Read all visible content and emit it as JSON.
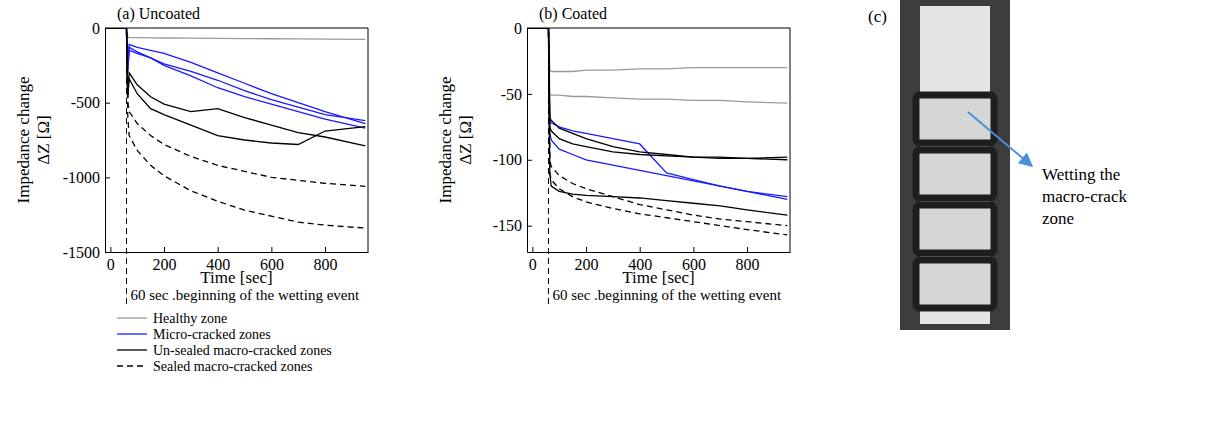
{
  "chart_data": [
    {
      "type": "line",
      "title": "(a) Uncoated",
      "x_label": "Time [sec]",
      "y_label": [
        "Impedance change",
        "ΔZ [Ω]"
      ],
      "annotation": "60 sec .beginning of the wetting event",
      "wetting_start": 60,
      "legend": "bottom",
      "x": [
        0,
        50,
        60,
        65,
        70,
        100,
        150,
        200,
        300,
        400,
        500,
        600,
        700,
        800,
        950
      ],
      "xlim": [
        -20,
        960
      ],
      "xticks": [
        0,
        200,
        400,
        600,
        800
      ],
      "ylim": [
        -1500,
        0
      ],
      "yticks": [
        -1500,
        -1000,
        -500,
        0
      ],
      "series": [
        {
          "name": "Healthy zone",
          "color": "#999999",
          "line_style": "solid",
          "values": [
            0,
            0,
            0,
            -60,
            -65,
            -65,
            -66,
            -67,
            -68,
            -70,
            -71,
            -72,
            -73,
            -74,
            -76
          ]
        },
        {
          "name": "Micro-cracked zones",
          "color": "#1a1aff",
          "line_style": "solid",
          "values": [
            0,
            0,
            0,
            -260,
            -110,
            -130,
            -150,
            -170,
            -230,
            -300,
            -370,
            -440,
            -500,
            -560,
            -640
          ]
        },
        {
          "name": "Micro-cracked zones",
          "color": "#1a1aff",
          "line_style": "solid",
          "values": [
            0,
            0,
            0,
            -300,
            -150,
            -170,
            -200,
            -240,
            -290,
            -350,
            -420,
            -480,
            -530,
            -580,
            -620
          ]
        },
        {
          "name": "Micro-cracked zones",
          "color": "#1a1aff",
          "line_style": "solid",
          "values": [
            0,
            0,
            0,
            -280,
            -130,
            -160,
            -200,
            -250,
            -320,
            -400,
            -460,
            -510,
            -560,
            -610,
            -670
          ]
        },
        {
          "name": "Un-sealed macro-cracked zones",
          "color": "#000000",
          "line_style": "solid",
          "values": [
            0,
            0,
            0,
            -470,
            -300,
            -380,
            -460,
            -510,
            -560,
            -540,
            -600,
            -650,
            -700,
            -730,
            -790
          ]
        },
        {
          "name": "Un-sealed macro-cracked zones",
          "color": "#000000",
          "line_style": "solid",
          "values": [
            0,
            0,
            0,
            -450,
            -340,
            -440,
            -540,
            -580,
            -650,
            -720,
            -750,
            -770,
            -780,
            -690,
            -660
          ]
        },
        {
          "name": "Sealed macro-cracked zones",
          "color": "#000000",
          "line_style": "dashed",
          "values": [
            0,
            0,
            0,
            -500,
            -560,
            -640,
            -720,
            -780,
            -860,
            -920,
            -960,
            -1000,
            -1020,
            -1040,
            -1060
          ]
        },
        {
          "name": "Sealed macro-cracked zones",
          "color": "#000000",
          "line_style": "dashed",
          "values": [
            0,
            0,
            0,
            -600,
            -720,
            -820,
            -920,
            -990,
            -1090,
            -1160,
            -1220,
            -1260,
            -1300,
            -1320,
            -1340
          ]
        }
      ]
    },
    {
      "type": "line",
      "title": "(b) Coated",
      "x_label": "Time [sec]",
      "y_label": [
        "Impedance change",
        "ΔZ [Ω]"
      ],
      "annotation": "60 sec .beginning of the wetting event",
      "wetting_start": 60,
      "x": [
        0,
        50,
        60,
        65,
        70,
        100,
        150,
        200,
        300,
        400,
        500,
        600,
        700,
        800,
        950
      ],
      "xlim": [
        -20,
        960
      ],
      "xticks": [
        0,
        200,
        400,
        600,
        800
      ],
      "ylim": [
        -170,
        0
      ],
      "yticks": [
        -150,
        -100,
        -50,
        0
      ],
      "series": [
        {
          "name": "Healthy zone",
          "color": "#999999",
          "line_style": "solid",
          "values": [
            0,
            0,
            0,
            -32,
            -33,
            -33,
            -33,
            -32,
            -32,
            -31,
            -31,
            -30,
            -30,
            -30,
            -30
          ]
        },
        {
          "name": "Healthy zone",
          "color": "#999999",
          "line_style": "solid",
          "values": [
            0,
            0,
            0,
            -50,
            -51,
            -51,
            -52,
            -52,
            -53,
            -54,
            -54,
            -55,
            -55,
            -56,
            -57
          ]
        },
        {
          "name": "Micro-cracked zones",
          "color": "#1a1aff",
          "line_style": "solid",
          "values": [
            0,
            0,
            0,
            -70,
            -72,
            -75,
            -78,
            -80,
            -84,
            -88,
            -110,
            -115,
            -120,
            -124,
            -128
          ]
        },
        {
          "name": "Micro-cracked zones",
          "color": "#1a1aff",
          "line_style": "solid",
          "values": [
            0,
            0,
            0,
            -80,
            -85,
            -92,
            -96,
            -100,
            -104,
            -108,
            -112,
            -116,
            -120,
            -124,
            -130
          ]
        },
        {
          "name": "Un-sealed macro-cracked zones",
          "color": "#000000",
          "line_style": "solid",
          "values": [
            0,
            0,
            0,
            -68,
            -70,
            -76,
            -80,
            -84,
            -90,
            -94,
            -96,
            -98,
            -99,
            -99,
            -100
          ]
        },
        {
          "name": "Un-sealed macro-cracked zones",
          "color": "#000000",
          "line_style": "solid",
          "values": [
            0,
            0,
            0,
            -75,
            -78,
            -84,
            -88,
            -90,
            -94,
            -96,
            -97,
            -98,
            -98,
            -99,
            -98
          ]
        },
        {
          "name": "Un-sealed macro-cracked zones",
          "color": "#000000",
          "line_style": "solid",
          "values": [
            0,
            0,
            0,
            -110,
            -120,
            -124,
            -126,
            -127,
            -128,
            -129,
            -131,
            -133,
            -135,
            -138,
            -142
          ]
        },
        {
          "name": "Sealed macro-cracked zones",
          "color": "#000000",
          "line_style": "dashed",
          "values": [
            0,
            0,
            0,
            -100,
            -105,
            -112,
            -118,
            -122,
            -128,
            -134,
            -138,
            -142,
            -145,
            -147,
            -150
          ]
        },
        {
          "name": "Sealed macro-cracked zones",
          "color": "#000000",
          "line_style": "dashed",
          "values": [
            0,
            0,
            0,
            -110,
            -115,
            -122,
            -128,
            -132,
            -137,
            -141,
            -144,
            -147,
            -150,
            -153,
            -157
          ]
        }
      ]
    }
  ],
  "panel_c": {
    "label": "(c)",
    "annotation": [
      "Wetting the",
      "macro-crack",
      "zone"
    ]
  }
}
